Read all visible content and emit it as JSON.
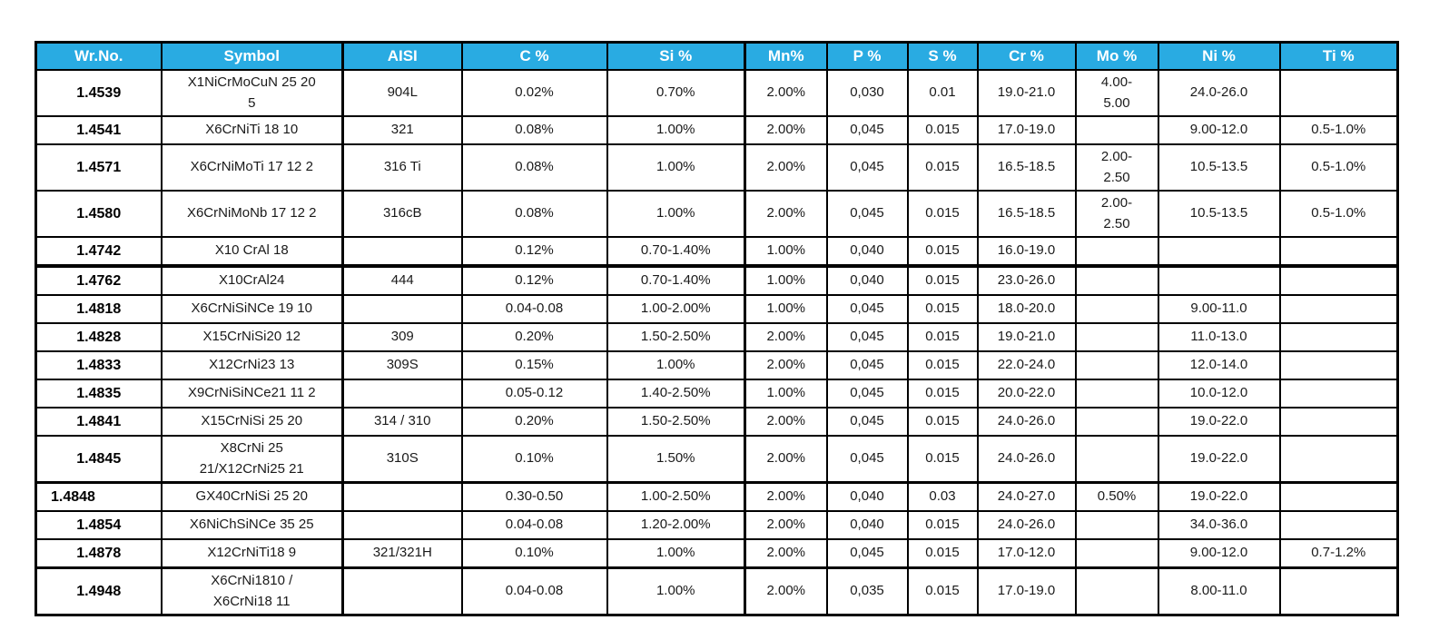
{
  "colors": {
    "header_background": "#29ABE2",
    "header_text": "#ffffff",
    "border": "#000000",
    "page_background": "#ffffff"
  },
  "table": {
    "title": "stainless-steel-grades-composition",
    "columns": [
      "Wr.No.",
      "Symbol",
      "AISI",
      "C %",
      "Si %",
      "Mn%",
      "P %",
      "S %",
      "Cr %",
      "Mo %",
      "Ni %",
      "Ti %"
    ],
    "rows": [
      [
        "1.4539",
        "X1NiCrMoCuN 25 20\n5",
        "904L",
        "0.02%",
        "0.70%",
        "2.00%",
        "0,030",
        "0.01",
        "19.0-21.0",
        "4.00-\n5.00",
        "24.0-26.0",
        ""
      ],
      [
        "1.4541",
        "X6CrNiTi 18 10",
        "321",
        "0.08%",
        "1.00%",
        "2.00%",
        "0,045",
        "0.015",
        "17.0-19.0",
        "",
        "9.00-12.0",
        "0.5-1.0%"
      ],
      [
        "1.4571",
        "X6CrNiMoTi 17 12 2",
        "316 Ti",
        "0.08%",
        "1.00%",
        "2.00%",
        "0,045",
        "0.015",
        "16.5-18.5",
        "2.00-\n2.50",
        "10.5-13.5",
        "0.5-1.0%"
      ],
      [
        "1.4580",
        "X6CrNiMoNb 17 12 2",
        "316cB",
        "0.08%",
        "1.00%",
        "2.00%",
        "0,045",
        "0.015",
        "16.5-18.5",
        "2.00-\n2.50",
        "10.5-13.5",
        "0.5-1.0%"
      ],
      [
        "1.4742",
        "X10 CrAl 18",
        "",
        "0.12%",
        "0.70-1.40%",
        "1.00%",
        "0,040",
        "0.015",
        "16.0-19.0",
        "",
        "",
        ""
      ],
      [
        "1.4762",
        "X10CrAl24",
        "444",
        "0.12%",
        "0.70-1.40%",
        "1.00%",
        "0,040",
        "0.015",
        "23.0-26.0",
        "",
        "",
        ""
      ],
      [
        "1.4818",
        "X6CrNiSiNCe 19 10",
        "",
        "0.04-0.08",
        "1.00-2.00%",
        "1.00%",
        "0,045",
        "0.015",
        "18.0-20.0",
        "",
        "9.00-11.0",
        ""
      ],
      [
        "1.4828",
        "X15CrNiSi20 12",
        "309",
        "0.20%",
        "1.50-2.50%",
        "2.00%",
        "0,045",
        "0.015",
        "19.0-21.0",
        "",
        "11.0-13.0",
        ""
      ],
      [
        "1.4833",
        "X12CrNi23 13",
        "309S",
        "0.15%",
        "1.00%",
        "2.00%",
        "0,045",
        "0.015",
        "22.0-24.0",
        "",
        "12.0-14.0",
        ""
      ],
      [
        "1.4835",
        "X9CrNiSiNCe21 11 2",
        "",
        "0.05-0.12",
        "1.40-2.50%",
        "1.00%",
        "0,045",
        "0.015",
        "20.0-22.0",
        "",
        "10.0-12.0",
        ""
      ],
      [
        "1.4841",
        "X15CrNiSi 25 20",
        "314 / 310",
        "0.20%",
        "1.50-2.50%",
        "2.00%",
        "0,045",
        "0.015",
        "24.0-26.0",
        "",
        "19.0-22.0",
        ""
      ],
      [
        "1.4845",
        "X8CrNi 25\n21/X12CrNi25 21",
        "310S",
        "0.10%",
        "1.50%",
        "2.00%",
        "0,045",
        "0.015",
        "24.0-26.0",
        "",
        "19.0-22.0",
        ""
      ],
      [
        "1.4848",
        "GX40CrNiSi 25 20",
        "",
        "0.30-0.50",
        "1.00-2.50%",
        "2.00%",
        "0,040",
        "0.03",
        "24.0-27.0",
        "0.50%",
        "19.0-22.0",
        ""
      ],
      [
        "1.4854",
        "X6NiChSiNCe 35 25",
        "",
        "0.04-0.08",
        "1.20-2.00%",
        "2.00%",
        "0,040",
        "0.015",
        "24.0-26.0",
        "",
        "34.0-36.0",
        ""
      ],
      [
        "1.4878",
        "X12CrNiTi18 9",
        "321/321H",
        "0.10%",
        "1.00%",
        "2.00%",
        "0,045",
        "0.015",
        "17.0-12.0",
        "",
        "9.00-12.0",
        "0.7-1.2%"
      ],
      [
        "1.4948",
        "X6CrNi1810 /\nX6CrNi18 11",
        "",
        "0.04-0.08",
        "1.00%",
        "2.00%",
        "0,035",
        "0.015",
        "17.0-19.0",
        "",
        "8.00-11.0",
        ""
      ]
    ]
  }
}
